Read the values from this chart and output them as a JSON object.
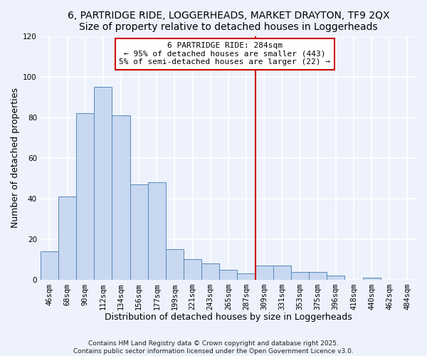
{
  "title": "6, PARTRIDGE RIDE, LOGGERHEADS, MARKET DRAYTON, TF9 2QX",
  "subtitle": "Size of property relative to detached houses in Loggerheads",
  "xlabel": "Distribution of detached houses by size in Loggerheads",
  "ylabel": "Number of detached properties",
  "categories": [
    "46sqm",
    "68sqm",
    "90sqm",
    "112sqm",
    "134sqm",
    "156sqm",
    "177sqm",
    "199sqm",
    "221sqm",
    "243sqm",
    "265sqm",
    "287sqm",
    "309sqm",
    "331sqm",
    "353sqm",
    "375sqm",
    "396sqm",
    "418sqm",
    "440sqm",
    "462sqm",
    "484sqm"
  ],
  "values": [
    14,
    41,
    82,
    95,
    81,
    47,
    48,
    15,
    10,
    8,
    5,
    3,
    7,
    7,
    4,
    4,
    2,
    0,
    1,
    0,
    0
  ],
  "bar_color": "#c8d8f0",
  "bar_edge_color": "#5588bb",
  "background_color": "#eef2fc",
  "grid_color": "#ffffff",
  "vline_x_index": 11.5,
  "vline_color": "#cc0000",
  "annotation_line1": "6 PARTRIDGE RIDE: 284sqm",
  "annotation_line2": "← 95% of detached houses are smaller (443)",
  "annotation_line3": "5% of semi-detached houses are larger (22) →",
  "ylim": [
    0,
    120
  ],
  "yticks": [
    0,
    20,
    40,
    60,
    80,
    100,
    120
  ],
  "footer1": "Contains HM Land Registry data © Crown copyright and database right 2025.",
  "footer2": "Contains public sector information licensed under the Open Government Licence v3.0.",
  "title_fontsize": 10,
  "subtitle_fontsize": 9,
  "axis_label_fontsize": 9,
  "tick_fontsize": 7.5,
  "annotation_fontsize": 8,
  "footer_fontsize": 6.5
}
